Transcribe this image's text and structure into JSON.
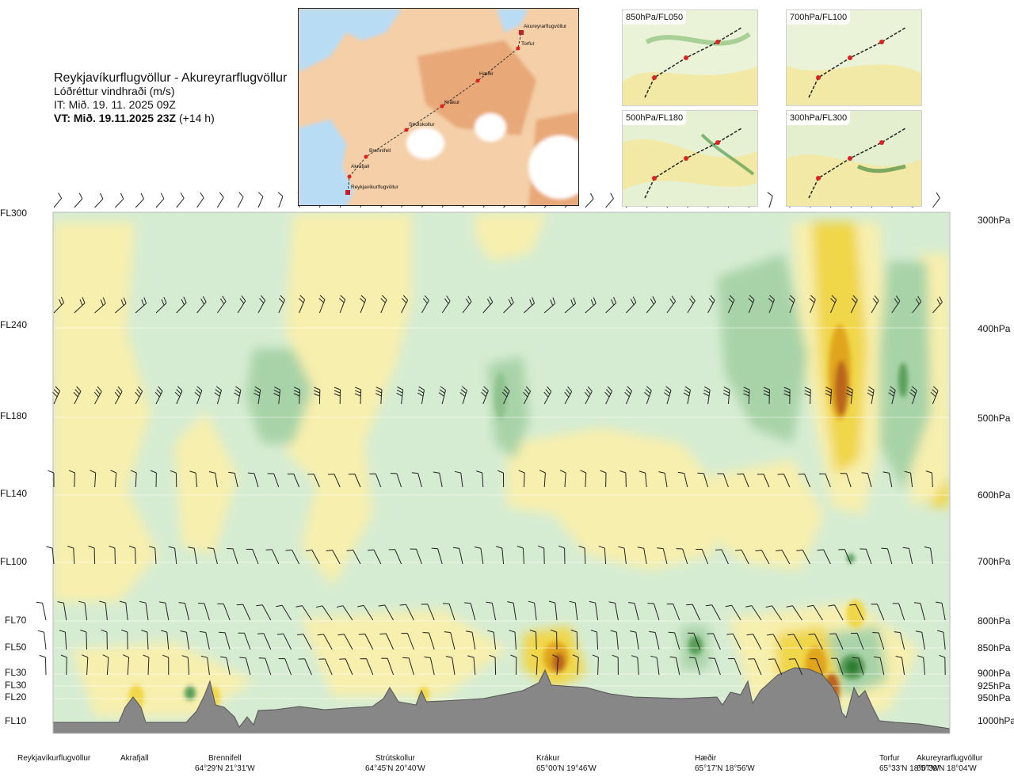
{
  "header": {
    "route": "Reykjavíkurflugvöllur - Akureyrarflugvöllur",
    "parameter": "Lóðréttur vindhraði (m/s)",
    "issue_time": "IT: Mið. 19. 11. 2025 09Z",
    "valid_time_bold": "VT: Mið. 19.11.2025 23Z",
    "valid_offset": " (+14 h)"
  },
  "route_map": {
    "waypoints": [
      "Akureyrarflugvöllur",
      "Torfur",
      "Hæðir",
      "Krákur",
      "Strútskollur",
      "Brennifell",
      "Akrafjall",
      "Reykjavíkurflugvöllur"
    ]
  },
  "thumbnails": [
    {
      "label": "850hPa/FL050"
    },
    {
      "label": "700hPa/FL100"
    },
    {
      "label": "500hPa/FL180"
    },
    {
      "label": "300hPa/FL300"
    }
  ],
  "chart_data": {
    "type": "heatmap",
    "title": "Lóðréttur vindhraði (m/s)",
    "colors": {
      "strong_down": "#5a9e5a",
      "mod_down": "#a8d3a8",
      "weak_down": "#d6ecd2",
      "neutral": "#fbfbe8",
      "weak_up": "#f7efae",
      "mod_up": "#f0d64a",
      "strong_up": "#e0a51e",
      "very_strong_up": "#b9641a",
      "terrain": "#878787"
    },
    "left_axis_levels": [
      "FL300",
      "FL240",
      "FL180",
      "FL140",
      "FL100",
      "FL70",
      "FL50",
      "FL30",
      "FL30",
      "FL20",
      "FL10"
    ],
    "right_axis_levels": [
      "300hPa",
      "400hPa",
      "500hPa",
      "600hPa",
      "700hPa",
      "800hPa",
      "850hPa",
      "900hPa",
      "925hPa",
      "950hPa",
      "1000hPa"
    ],
    "pressure_levels_hpa": [
      300,
      400,
      500,
      600,
      700,
      800,
      850,
      900,
      925,
      950,
      1000
    ],
    "x_locations": [
      {
        "name": "Reykjavíkurflugvöllur",
        "coord": ""
      },
      {
        "name": "Akrafjall",
        "coord": ""
      },
      {
        "name": "Brennifell",
        "coord": "64°29'N 21°31'W"
      },
      {
        "name": "Strútskollur",
        "coord": "64°45'N 20°40'W"
      },
      {
        "name": "Krákur",
        "coord": "65°00'N 19°46'W"
      },
      {
        "name": "Hæðir",
        "coord": "65°17'N 18°56'W"
      },
      {
        "name": "Torfur",
        "coord": "65°33'N 18°07'W"
      },
      {
        "name": "Akureyrarflugvöllur",
        "coord": "65°39'N 18°04'W"
      }
    ],
    "wind_barb_levels_hpa": [
      300,
      400,
      500,
      600,
      700,
      800,
      850,
      900
    ],
    "terrain": "grey silhouette along the route, highest near Hæðir–Torfur"
  }
}
